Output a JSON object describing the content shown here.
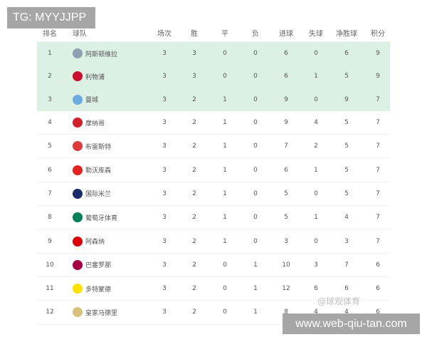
{
  "overlay_tag": "TG: MYYJJPP",
  "site_banner": "www.web-qiu-tan.com",
  "watermark": "@球观体育",
  "headers": [
    "排名",
    "球队",
    "场次",
    "胜",
    "平",
    "负",
    "进球",
    "失球",
    "净胜球",
    "积分"
  ],
  "highlight_color": "#dcf1e4",
  "rows": [
    {
      "rank": "1",
      "team": "阿斯顿维拉",
      "logo": "aston-villa-crest",
      "color": "#8ea0b0",
      "cells": [
        "3",
        "3",
        "0",
        "0",
        "6",
        "0",
        "6",
        "9"
      ]
    },
    {
      "rank": "2",
      "team": "利物浦",
      "logo": "liverpool-crest",
      "color": "#c8102e",
      "cells": [
        "3",
        "3",
        "0",
        "0",
        "6",
        "1",
        "5",
        "9"
      ]
    },
    {
      "rank": "3",
      "team": "曼城",
      "logo": "man-city-crest",
      "color": "#6cabdd",
      "cells": [
        "3",
        "2",
        "1",
        "0",
        "9",
        "0",
        "9",
        "7"
      ]
    },
    {
      "rank": "4",
      "team": "摩纳哥",
      "logo": "monaco-crest",
      "color": "#d4202a",
      "cells": [
        "3",
        "2",
        "1",
        "0",
        "9",
        "4",
        "5",
        "7"
      ]
    },
    {
      "rank": "5",
      "team": "布雷斯特",
      "logo": "brest-crest",
      "color": "#e03a3e",
      "cells": [
        "3",
        "2",
        "1",
        "0",
        "7",
        "2",
        "5",
        "7"
      ]
    },
    {
      "rank": "6",
      "team": "勒沃库森",
      "logo": "leverkusen-crest",
      "color": "#e32221",
      "cells": [
        "3",
        "2",
        "1",
        "0",
        "6",
        "1",
        "5",
        "7"
      ]
    },
    {
      "rank": "7",
      "team": "国际米兰",
      "logo": "inter-crest",
      "color": "#1a2c6b",
      "cells": [
        "3",
        "2",
        "1",
        "0",
        "5",
        "0",
        "5",
        "7"
      ]
    },
    {
      "rank": "8",
      "team": "葡萄牙体育",
      "logo": "sporting-crest",
      "color": "#008057",
      "cells": [
        "3",
        "2",
        "1",
        "0",
        "5",
        "1",
        "4",
        "7"
      ]
    },
    {
      "rank": "9",
      "team": "阿森纳",
      "logo": "arsenal-crest",
      "color": "#db0007",
      "cells": [
        "3",
        "2",
        "1",
        "0",
        "3",
        "0",
        "3",
        "7"
      ]
    },
    {
      "rank": "10",
      "team": "巴塞罗那",
      "logo": "barcelona-crest",
      "color": "#a50044",
      "cells": [
        "3",
        "2",
        "0",
        "1",
        "10",
        "3",
        "7",
        "6"
      ]
    },
    {
      "rank": "11",
      "team": "多特蒙德",
      "logo": "dortmund-crest",
      "color": "#fde100",
      "cells": [
        "3",
        "2",
        "0",
        "1",
        "12",
        "6",
        "6",
        "6"
      ]
    },
    {
      "rank": "12",
      "team": "皇家马德里",
      "logo": "real-madrid-crest",
      "color": "#d9c37a",
      "cells": [
        "3",
        "2",
        "0",
        "1",
        "8",
        "4",
        "4",
        "6"
      ]
    }
  ]
}
